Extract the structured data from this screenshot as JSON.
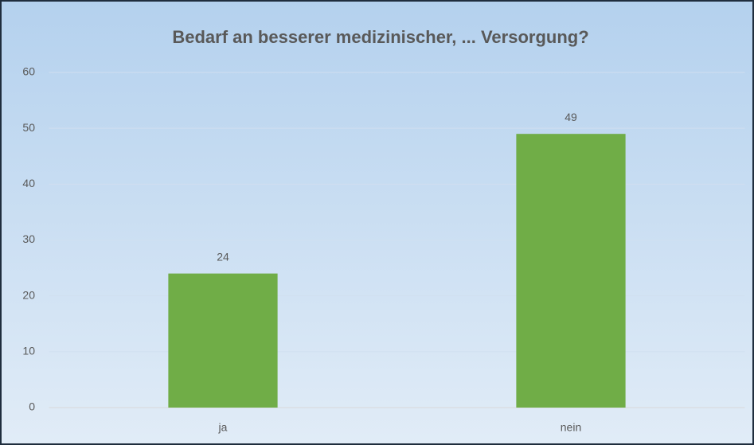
{
  "chart_data": {
    "type": "bar",
    "title": "Bedarf an besserer medizinischer, ... Versorgung?",
    "categories": [
      "ja",
      "nein"
    ],
    "values": [
      24,
      49
    ],
    "color": "#70ad47",
    "ylim": [
      0,
      60
    ],
    "yticks": [
      0,
      10,
      20,
      30,
      40,
      50,
      60
    ],
    "grid": true
  }
}
